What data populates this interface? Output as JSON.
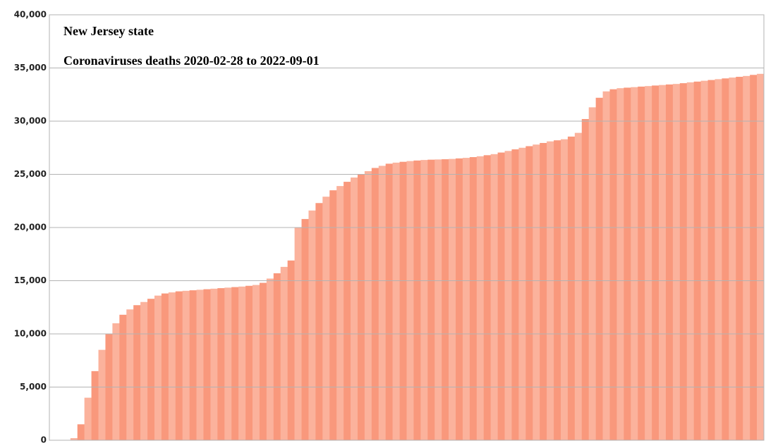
{
  "chart_data": {
    "type": "bar",
    "title": "New Jersey state",
    "subtitle": "Coronaviruses deaths 2020-02-28 to 2022-09-01",
    "values": [
      0,
      0,
      0,
      200,
      1500,
      4000,
      6500,
      8500,
      10000,
      11000,
      11800,
      12300,
      12700,
      13000,
      13300,
      13600,
      13800,
      13900,
      14000,
      14050,
      14100,
      14150,
      14200,
      14250,
      14300,
      14350,
      14400,
      14450,
      14520,
      14600,
      14800,
      15200,
      15700,
      16300,
      16900,
      20000,
      20800,
      21600,
      22300,
      22900,
      23500,
      23900,
      24300,
      24700,
      25000,
      25300,
      25600,
      25800,
      26000,
      26100,
      26180,
      26250,
      26300,
      26350,
      26380,
      26400,
      26420,
      26450,
      26500,
      26550,
      26620,
      26700,
      26800,
      26900,
      27050,
      27200,
      27350,
      27500,
      27650,
      27800,
      27950,
      28100,
      28200,
      28300,
      28550,
      28900,
      30200,
      31300,
      32200,
      32800,
      33000,
      33100,
      33150,
      33200,
      33250,
      33300,
      33350,
      33400,
      33450,
      33500,
      33570,
      33650,
      33720,
      33800,
      33870,
      33950,
      34020,
      34100,
      34170,
      34250,
      34350,
      34450
    ],
    "colors": [
      "#f9987c",
      "#fbb29c"
    ],
    "ylim": [
      0,
      40000
    ],
    "yticks": [
      0,
      {
        "value": 5000,
        "label": "5,000"
      },
      {
        "value": 10000,
        "label": "10,000"
      },
      {
        "value": 15000,
        "label": "15,000"
      },
      {
        "value": 20000,
        "label": "20,000"
      },
      {
        "value": 25000,
        "label": "25,000"
      },
      {
        "value": 30000,
        "label": "30,000"
      },
      {
        "value": 35000,
        "label": "35,000"
      },
      {
        "value": 40000,
        "label": "40,000"
      }
    ],
    "grid": true
  }
}
